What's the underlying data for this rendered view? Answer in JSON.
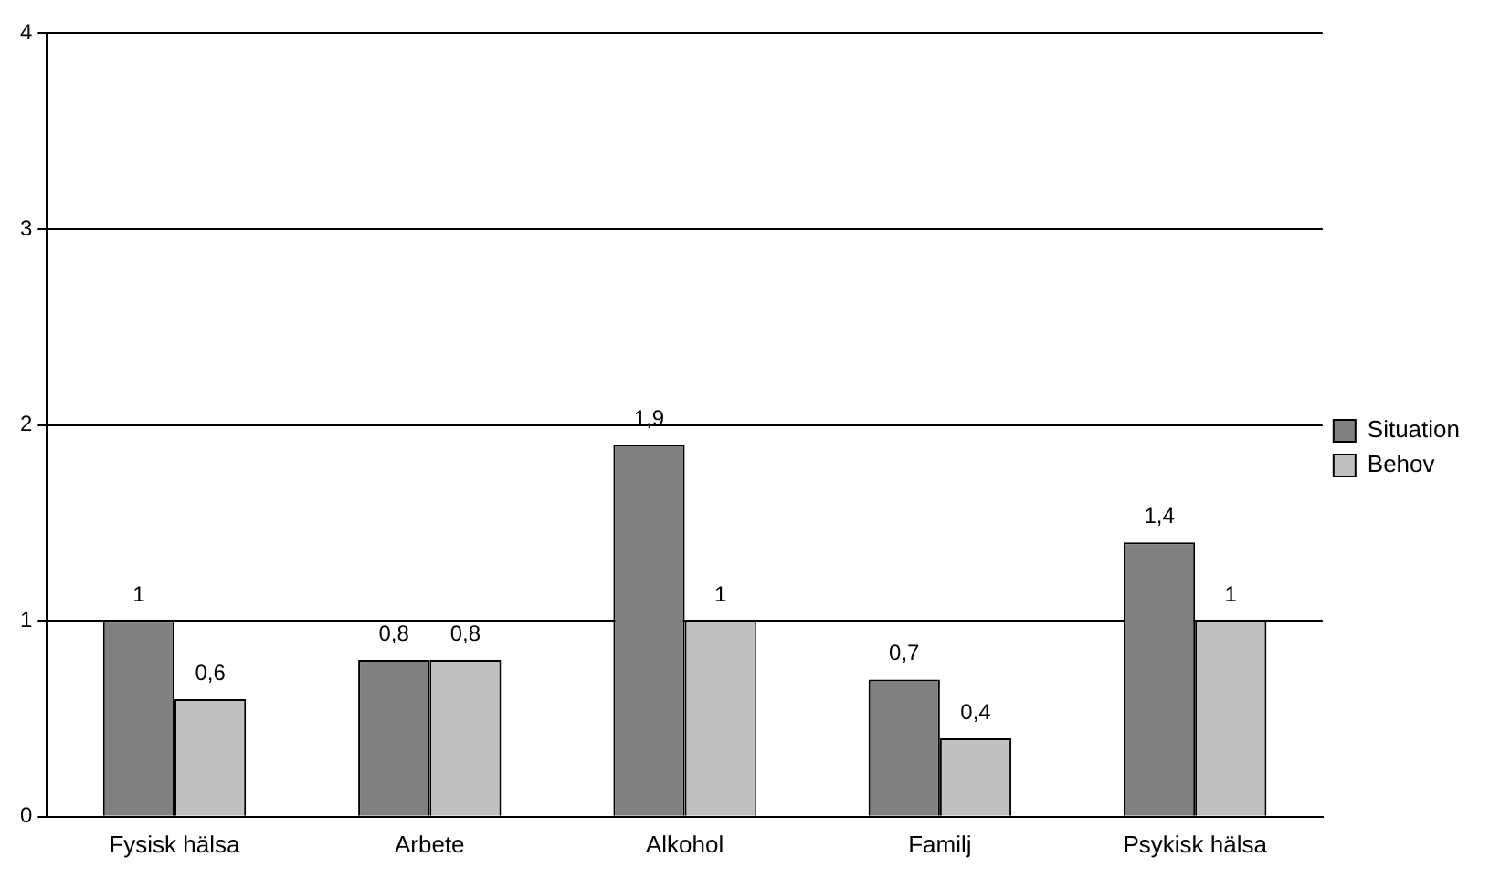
{
  "chart_data": {
    "type": "bar",
    "categories": [
      "Fysisk hälsa",
      "Arbete",
      "Alkohol",
      "Familj",
      "Psykisk hälsa"
    ],
    "series": [
      {
        "name": "Situation",
        "color": "#808080",
        "values": [
          1,
          0.8,
          1.9,
          0.7,
          1.4
        ],
        "value_labels": [
          "1",
          "0,8",
          "1,9",
          "0,7",
          "1,4"
        ]
      },
      {
        "name": "Behov",
        "color": "#c0c0c0",
        "values": [
          0.6,
          0.8,
          1,
          0.4,
          1
        ],
        "value_labels": [
          "0,6",
          "0,8",
          "1",
          "0,4",
          "1"
        ]
      }
    ],
    "ylim": [
      0,
      4
    ],
    "yticks": [
      0,
      1,
      2,
      3,
      4
    ],
    "grid": "y",
    "legend": "right"
  }
}
